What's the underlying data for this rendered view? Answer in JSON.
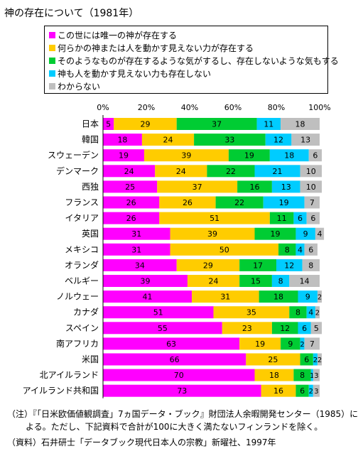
{
  "title": "神の存在について（1981年）",
  "chart_data": {
    "type": "bar",
    "orientation": "horizontal",
    "stacked": true,
    "xlim": [
      0,
      100
    ],
    "x_ticks": [
      "0%",
      "20%",
      "40%",
      "60%",
      "80%",
      "100%"
    ],
    "categories": [
      "日本",
      "韓国",
      "スウェーデン",
      "デンマーク",
      "西独",
      "フランス",
      "イタリア",
      "英国",
      "メキシコ",
      "オランダ",
      "ベルギー",
      "ノルウェー",
      "カナダ",
      "スペイン",
      "南アフリカ",
      "米国",
      "北アイルランド",
      "アイルランド共和国"
    ],
    "series": [
      {
        "name": "この世には唯一の神が存在する",
        "color": "#ff00ff",
        "values": [
          5,
          18,
          19,
          24,
          25,
          26,
          26,
          31,
          31,
          34,
          39,
          41,
          51,
          55,
          63,
          66,
          70,
          73
        ]
      },
      {
        "name": "何らかの神または人を動かす見えない力が存在する",
        "color": "#ffcc00",
        "values": [
          29,
          24,
          39,
          24,
          37,
          26,
          51,
          39,
          50,
          29,
          24,
          31,
          35,
          23,
          19,
          25,
          18,
          16
        ]
      },
      {
        "name": "そのようなものが存在するような気がするし、存在しないような気もする",
        "color": "#00cc33",
        "values": [
          37,
          33,
          19,
          22,
          16,
          22,
          11,
          19,
          8,
          17,
          15,
          18,
          8,
          12,
          9,
          6,
          8,
          6
        ]
      },
      {
        "name": "神も人を動かす見えない力も存在しない",
        "color": "#00ccff",
        "values": [
          11,
          12,
          18,
          21,
          13,
          19,
          6,
          9,
          4,
          12,
          8,
          9,
          4,
          6,
          2,
          2,
          1,
          2
        ]
      },
      {
        "name": "わからない",
        "color": "#bfbfbf",
        "values": [
          18,
          13,
          6,
          10,
          10,
          7,
          6,
          4,
          6,
          8,
          14,
          2,
          2,
          5,
          7,
          2,
          3,
          3
        ]
      }
    ]
  },
  "notes": [
    "（注）『「日米欧価値観調査」7ヵ国データ・ブック』財団法人余暇開発センター（1985）に",
    "よる。ただし、下記資料で合計が100に大きく満たないフィンランドを除く。",
    "（資料）石井研士「データブック現代日本人の宗教」新曜社、1997年"
  ]
}
